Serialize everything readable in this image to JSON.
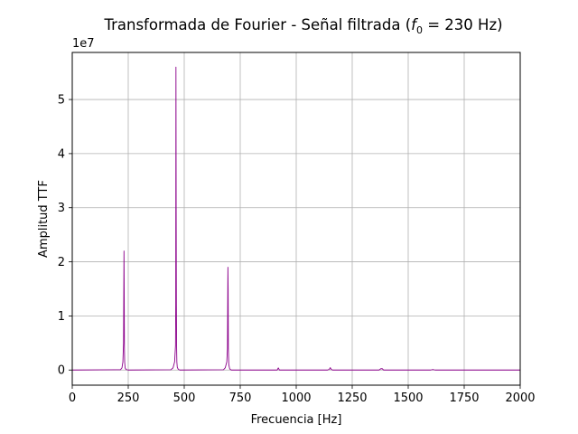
{
  "chart_data": {
    "type": "line",
    "title_prefix": "Transformada de Fourier - Señal filtrada (",
    "title_f": "f",
    "title_sub": "0",
    "title_suffix": " = 230 Hz)",
    "xlabel": "Frecuencia [Hz]",
    "ylabel": "Amplitud TTF",
    "offset_label": "1e7",
    "xlim": [
      0,
      2000
    ],
    "ylim": [
      -2800000,
      58700000
    ],
    "x_ticks": [
      0,
      250,
      500,
      750,
      1000,
      1250,
      1500,
      1750,
      2000
    ],
    "x_tick_labels": [
      "0",
      "250",
      "500",
      "750",
      "1000",
      "1250",
      "1500",
      "1750",
      "2000"
    ],
    "y_ticks": [
      0,
      10000000,
      20000000,
      30000000,
      40000000,
      50000000
    ],
    "y_tick_labels": [
      "0",
      "1",
      "2",
      "3",
      "4",
      "5"
    ],
    "grid": true,
    "line_color": "#8b008b",
    "series": [
      {
        "x": [
          0,
          215,
          222,
          226,
          229,
          231,
          232,
          233,
          234,
          236,
          240,
          250,
          440,
          450,
          457,
          461,
          462,
          463,
          464,
          465,
          466,
          467,
          469,
          473,
          480,
          675,
          683,
          690,
          693,
          695,
          696,
          697,
          699,
          703,
          710,
          915,
          920,
          925,
          930,
          1140,
          1148,
          1152,
          1156,
          1162,
          1370,
          1378,
          1384,
          1390,
          1600,
          1610,
          1620,
          2000
        ],
        "y": [
          0,
          50000,
          400000,
          1500000,
          5000000,
          22000000,
          14000000,
          4000000,
          1500000,
          400000,
          100000,
          0,
          50000,
          400000,
          1500000,
          4500000,
          12000000,
          56000000,
          30000000,
          12000000,
          4000000,
          1500000,
          500000,
          150000,
          0,
          50000,
          400000,
          1500000,
          4000000,
          19000000,
          15000000,
          4000000,
          1000000,
          200000,
          0,
          0,
          400000,
          0,
          0,
          0,
          150000,
          450000,
          150000,
          0,
          0,
          250000,
          250000,
          0,
          0,
          100000,
          0,
          0
        ]
      }
    ]
  }
}
